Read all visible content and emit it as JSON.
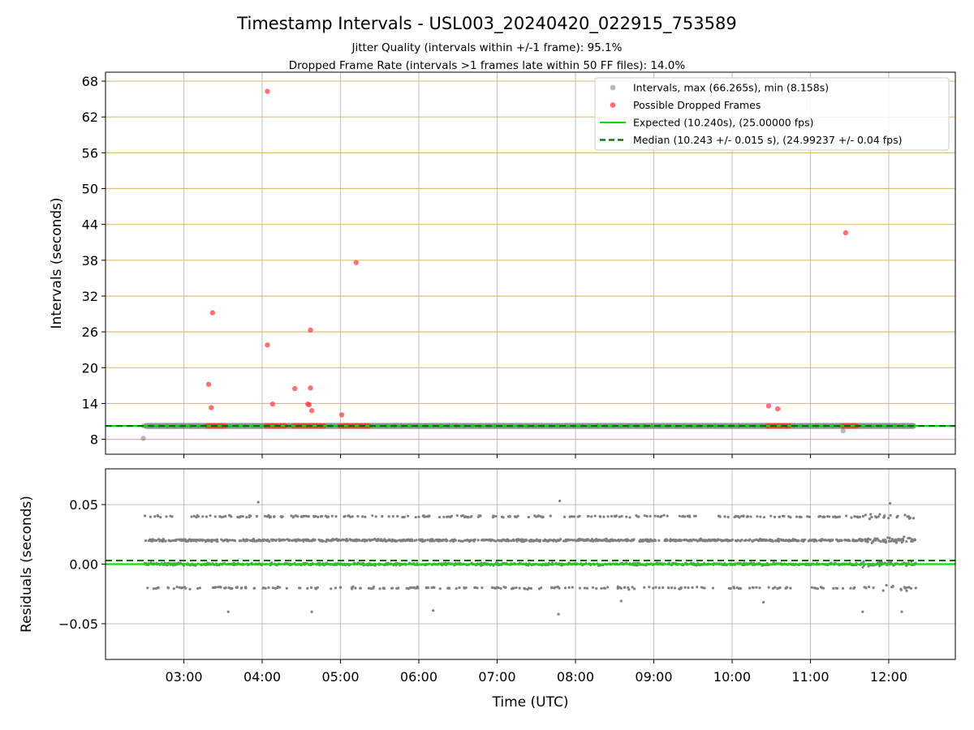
{
  "chart_data": [
    {
      "type": "scatter",
      "title": "Timestamp Intervals - USL003_20240420_022915_753589",
      "subtitle_lines": [
        "Jitter Quality (intervals within +/-1 frame): 95.1%",
        "Dropped Frame Rate (intervals >1 frames late within 50 FF files): 14.0%"
      ],
      "xlabel": "",
      "ylabel": "Intervals (seconds)",
      "xlim": [
        "02:00",
        "12:51"
      ],
      "ylim": [
        5.5,
        69.5
      ],
      "y_ticks": [
        8,
        14,
        20,
        26,
        32,
        38,
        44,
        50,
        56,
        62,
        68
      ],
      "x_ticks": [
        "03:00",
        "04:00",
        "05:00",
        "06:00",
        "07:00",
        "08:00",
        "09:00",
        "10:00",
        "11:00",
        "12:00"
      ],
      "grid": true,
      "legend_position": "top-right",
      "legend": [
        "Intervals, max (66.265s), min (8.158s)",
        "Possible Dropped Frames",
        "Expected (10.240s), (25.00000 fps)",
        "Median (10.243 +/- 0.015 s), (24.99237 +/- 0.04 fps)"
      ],
      "series": [
        {
          "name": "Intervals, max (66.265s), min (8.158s)",
          "color": "#808080",
          "x_range": [
            "02:29",
            "12:21"
          ],
          "baseline_value": 10.24,
          "outliers": [
            {
              "time": "02:29",
              "value": 8.16
            },
            {
              "time": "11:25",
              "value": 9.4
            }
          ]
        },
        {
          "name": "Possible Dropped Frames",
          "color": "#ff3b3b",
          "points": [
            {
              "time": "03:19",
              "value": 17.2
            },
            {
              "time": "03:21",
              "value": 13.3
            },
            {
              "time": "03:22",
              "value": 29.2
            },
            {
              "time": "04:04",
              "value": 66.3
            },
            {
              "time": "04:04",
              "value": 23.8
            },
            {
              "time": "04:08",
              "value": 13.9
            },
            {
              "time": "04:25",
              "value": 16.5
            },
            {
              "time": "04:35",
              "value": 13.9
            },
            {
              "time": "04:36",
              "value": 13.8
            },
            {
              "time": "04:37",
              "value": 26.3
            },
            {
              "time": "04:37",
              "value": 16.6
            },
            {
              "time": "04:38",
              "value": 12.8
            },
            {
              "time": "05:01",
              "value": 12.1
            },
            {
              "time": "05:12",
              "value": 37.6
            },
            {
              "time": "10:28",
              "value": 13.6
            },
            {
              "time": "10:35",
              "value": 13.1
            },
            {
              "time": "11:27",
              "value": 42.6
            }
          ],
          "clusters_near_baseline": [
            [
              "03:18",
              "03:32"
            ],
            [
              "04:03",
              "04:18"
            ],
            [
              "04:24",
              "04:48"
            ],
            [
              "05:00",
              "05:12"
            ],
            [
              "05:12",
              "05:22"
            ],
            [
              "10:27",
              "10:44"
            ],
            [
              "11:25",
              "11:36"
            ]
          ],
          "cluster_value": 10.24
        },
        {
          "name": "Expected (10.240s), (25.00000 fps)",
          "color": "#00e000",
          "value": 10.24
        },
        {
          "name": "Median (10.243 +/- 0.015 s), (24.99237 +/- 0.04 fps)",
          "color": "#006400",
          "value": 10.243
        }
      ]
    },
    {
      "type": "scatter",
      "xlabel": "Time (UTC)",
      "ylabel": "Residuals (seconds)",
      "xlim": [
        "02:00",
        "12:51"
      ],
      "ylim": [
        -0.08,
        0.08
      ],
      "y_ticks": [
        0.05,
        0.0,
        -0.05
      ],
      "y_tick_labels": [
        "0.05",
        "0.00",
        "−0.05"
      ],
      "x_ticks": [
        "03:00",
        "04:00",
        "05:00",
        "06:00",
        "07:00",
        "08:00",
        "09:00",
        "10:00",
        "11:00",
        "12:00"
      ],
      "grid": true,
      "series": [
        {
          "name": "Residuals",
          "color": "#808080",
          "x_range": [
            "02:30",
            "12:21"
          ],
          "levels": [
            -0.02,
            0.0,
            0.02,
            0.04
          ],
          "level_weights": [
            0.1,
            0.4,
            0.38,
            0.12
          ],
          "extreme_points": [
            {
              "time": "03:34",
              "value": -0.04
            },
            {
              "time": "03:57",
              "value": 0.052
            },
            {
              "time": "04:38",
              "value": -0.04
            },
            {
              "time": "06:11",
              "value": -0.039
            },
            {
              "time": "07:47",
              "value": -0.042
            },
            {
              "time": "07:48",
              "value": 0.053
            },
            {
              "time": "08:35",
              "value": -0.031
            },
            {
              "time": "10:24",
              "value": -0.032
            },
            {
              "time": "11:40",
              "value": -0.04
            },
            {
              "time": "12:01",
              "value": 0.051
            },
            {
              "time": "12:10",
              "value": -0.04
            }
          ]
        },
        {
          "name": "Expected",
          "color": "#00e000",
          "value": 0.0
        },
        {
          "name": "Median",
          "color": "#006400",
          "value": 0.003
        }
      ]
    }
  ]
}
